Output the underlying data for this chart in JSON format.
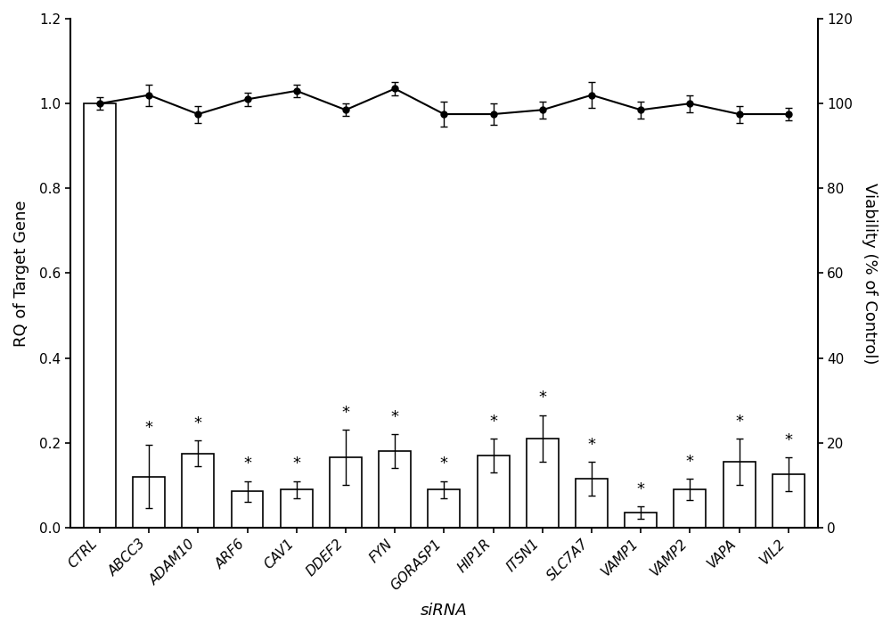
{
  "categories": [
    "CTRL",
    "ABCC3",
    "ADAM10",
    "ARF6",
    "CAV1",
    "DDEF2",
    "FYN",
    "GORASP1",
    "HIP1R",
    "ITSN1",
    "SLC7A7",
    "VAMP1",
    "VAMP2",
    "VAPA",
    "VIL2"
  ],
  "bar_values": [
    1.0,
    0.12,
    0.175,
    0.085,
    0.09,
    0.165,
    0.18,
    0.09,
    0.17,
    0.21,
    0.115,
    0.035,
    0.09,
    0.155,
    0.125
  ],
  "bar_errors": [
    0.0,
    0.075,
    0.03,
    0.025,
    0.02,
    0.065,
    0.04,
    0.02,
    0.04,
    0.055,
    0.04,
    0.015,
    0.025,
    0.055,
    0.04
  ],
  "line_values": [
    100.0,
    102.0,
    97.5,
    101.0,
    103.0,
    98.5,
    103.5,
    97.5,
    97.5,
    98.5,
    102.0,
    98.5,
    100.0,
    97.5,
    97.5
  ],
  "line_errors": [
    1.5,
    2.5,
    2.0,
    1.5,
    1.5,
    1.5,
    1.5,
    3.0,
    2.5,
    2.0,
    3.0,
    2.0,
    2.0,
    2.0,
    1.5
  ],
  "significance": [
    false,
    true,
    true,
    true,
    true,
    true,
    true,
    true,
    true,
    true,
    true,
    true,
    true,
    true,
    true
  ],
  "bar_color": "#ffffff",
  "bar_edgecolor": "#000000",
  "line_color": "#000000",
  "marker_style": "o",
  "marker_size": 5,
  "xlabel": "siRNA",
  "ylabel_left": "RQ of Target Gene",
  "ylabel_right": "Viability (% of Control)",
  "ylim_left": [
    0.0,
    1.2
  ],
  "ylim_right": [
    0,
    120
  ],
  "yticks_left": [
    0.0,
    0.2,
    0.4,
    0.6,
    0.8,
    1.0,
    1.2
  ],
  "yticks_right": [
    0,
    20,
    40,
    60,
    80,
    100,
    120
  ],
  "ytick_labels_left": [
    "0.0",
    "0.2",
    "0.4",
    "0.6",
    "0.8",
    "1.0",
    "1.2"
  ],
  "ytick_labels_right": [
    "0",
    "20",
    "40",
    "60",
    "80",
    "100",
    "120"
  ],
  "background_color": "#ffffff",
  "xlabel_fontsize": 13,
  "ylabel_fontsize": 13,
  "tick_fontsize": 11,
  "star_fontsize": 13,
  "bar_width": 0.65,
  "linewidth": 1.5,
  "spine_linewidth": 1.5
}
